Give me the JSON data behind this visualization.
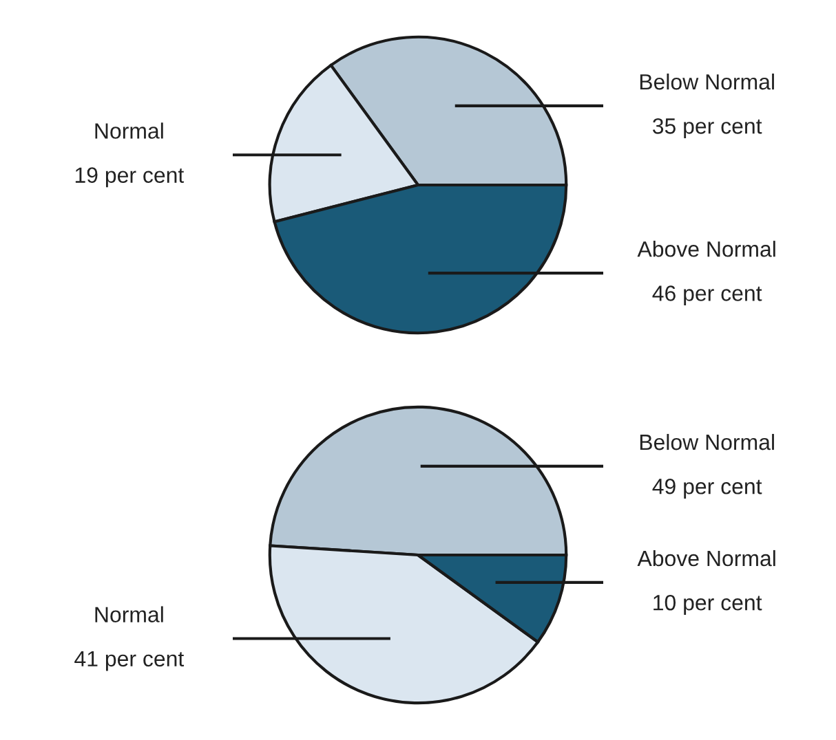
{
  "chart_data": [
    {
      "type": "pie",
      "categories": [
        "Below Normal",
        "Normal",
        "Above Normal"
      ],
      "values": [
        35,
        19,
        46
      ],
      "colors": [
        "#b5c7d5",
        "#dbe6f0",
        "#1a5a78"
      ],
      "value_labels": [
        "35 per cent",
        "19 per cent",
        "46 per cent"
      ]
    },
    {
      "type": "pie",
      "categories": [
        "Below Normal",
        "Normal",
        "Above Normal"
      ],
      "values": [
        49,
        41,
        10
      ],
      "colors": [
        "#b5c7d5",
        "#dbe6f0",
        "#1a5a78"
      ],
      "value_labels": [
        "49 per cent",
        "41 per cent",
        "10 per cent"
      ]
    }
  ]
}
